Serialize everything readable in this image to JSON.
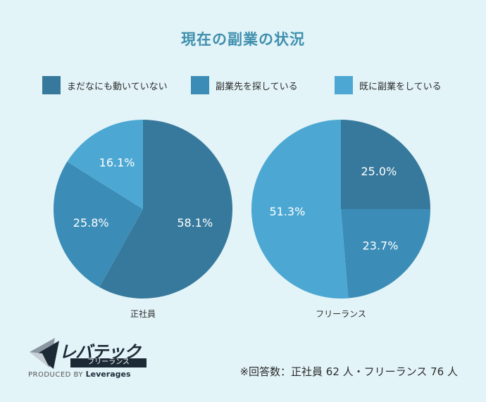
{
  "chart_data": [
    {
      "type": "pie",
      "caption": "正社員",
      "categories": [
        "まだなにも動いていない",
        "副業先を探している",
        "既に副業をしている"
      ],
      "values": [
        58.1,
        25.8,
        16.1
      ],
      "labels": [
        "58.1%",
        "25.8%",
        "16.1%"
      ],
      "colors": [
        "#37799c",
        "#3b8db7",
        "#4ca8d3"
      ]
    },
    {
      "type": "pie",
      "caption": "フリーランス",
      "categories": [
        "まだなにも動いていない",
        "副業先を探している",
        "既に副業をしている"
      ],
      "values": [
        25.0,
        23.7,
        51.3
      ],
      "labels": [
        "25.0%",
        "23.7%",
        "51.3%"
      ],
      "colors": [
        "#37799c",
        "#3b8db7",
        "#4ca8d3"
      ]
    }
  ],
  "title": "現在の副業の状況",
  "legend": [
    {
      "label": "まだなにも動いていない",
      "color": "#37799c"
    },
    {
      "label": "副業先を探している",
      "color": "#3b8db7"
    },
    {
      "label": "既に副業をしている",
      "color": "#4ca8d3"
    }
  ],
  "logo": {
    "main": "レバテック",
    "sub": "フリーランス",
    "produced_by": "PRODUCED BY",
    "brand": "Leverages"
  },
  "note": "※回答数：正社員 62 人・フリーランス 76 人"
}
